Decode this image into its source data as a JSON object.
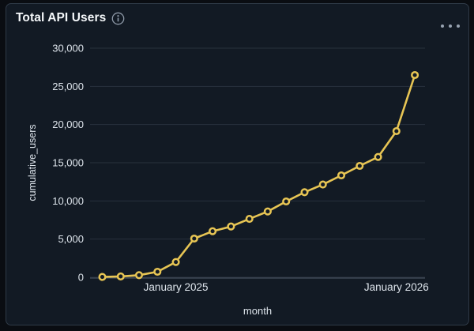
{
  "panel": {
    "title": "Total API Users",
    "info_icon": "info-circle",
    "options_icon": "ellipsis-horizontal"
  },
  "colors": {
    "page_background": "#0a0d12",
    "panel_background": "#121a24",
    "panel_border": "#2f3a47",
    "gridline": "#28313d",
    "axis_line": "#434d5b",
    "series_line": "#e7c554",
    "marker_fill": "#121a24",
    "tick_text": "#dde4eb",
    "title_text": "#f5f8fa",
    "icon_gray": "#8e99a8"
  },
  "chart_data": {
    "type": "line",
    "title": "Total API Users",
    "xlabel": "month",
    "ylabel": "cumulative_users",
    "ylim": [
      0,
      30000
    ],
    "grid": true,
    "legend": false,
    "marker": "open-circle",
    "x": [
      "2024-09",
      "2024-10",
      "2024-11",
      "2024-12",
      "2025-01",
      "2025-02",
      "2025-03",
      "2025-04",
      "2025-05",
      "2025-06",
      "2025-07",
      "2025-08",
      "2025-09",
      "2025-10",
      "2025-11",
      "2025-12",
      "2026-01",
      "2026-02"
    ],
    "values": [
      40,
      110,
      280,
      720,
      2000,
      5070,
      6030,
      6650,
      7650,
      8620,
      9930,
      11140,
      12140,
      13340,
      14590,
      15760,
      19140,
      26480
    ],
    "y_ticks": [
      {
        "value": 0,
        "label": "0"
      },
      {
        "value": 5000,
        "label": "5,000"
      },
      {
        "value": 10000,
        "label": "10,000"
      },
      {
        "value": 15000,
        "label": "15,000"
      },
      {
        "value": 20000,
        "label": "20,000"
      },
      {
        "value": 25000,
        "label": "25,000"
      },
      {
        "value": 30000,
        "label": "30,000"
      }
    ],
    "x_ticks": [
      {
        "index": 4,
        "label": "January 2025"
      },
      {
        "index": 16,
        "label": "January 2026"
      }
    ]
  }
}
